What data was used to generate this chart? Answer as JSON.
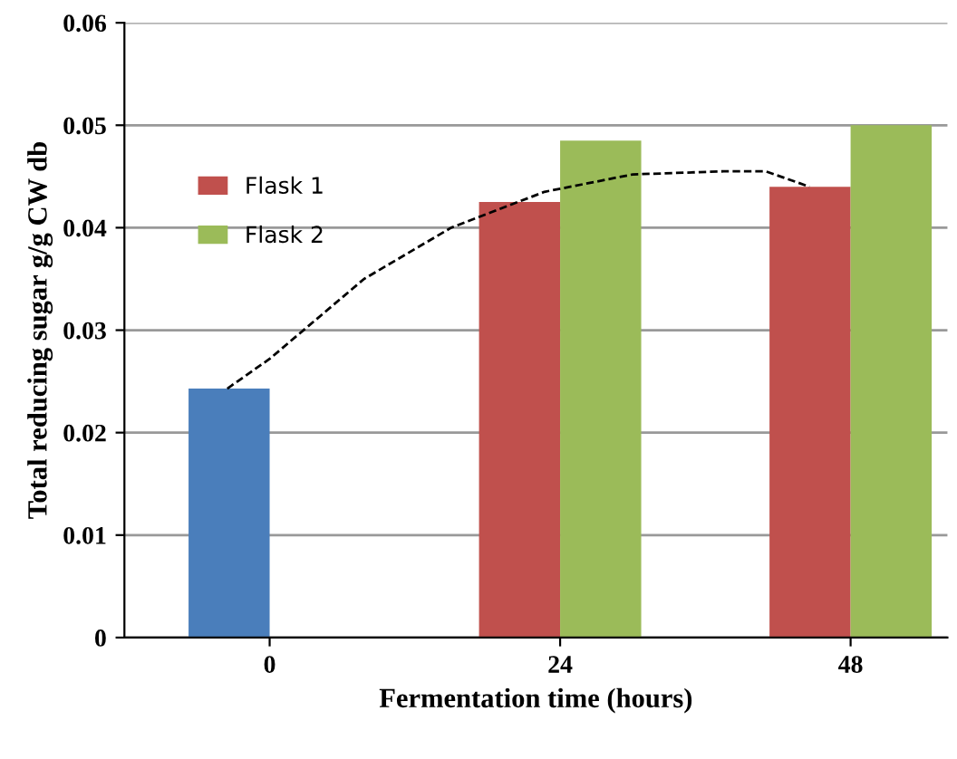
{
  "chart_data": {
    "type": "bar",
    "xlabel": "Fermentation time (hours)",
    "ylabel": "Total reducing sugar g/g CW db",
    "x": [
      0,
      24,
      48
    ],
    "xlim": [
      -12,
      56
    ],
    "xticks": [
      0,
      24,
      48
    ],
    "ylim": [
      0,
      0.06
    ],
    "yticks": [
      0,
      0.01,
      0.02,
      0.03,
      0.04,
      0.05,
      0.06
    ],
    "grid": "y",
    "legend": "top left",
    "series": [
      {
        "name": "Flask 1",
        "color": "#c0504d",
        "colors": [
          "#4a7ebb",
          "#c0504d",
          "#c0504d"
        ],
        "values": [
          0.0243,
          0.0425,
          0.044
        ]
      },
      {
        "name": "Flask 2",
        "color": "#9bbb59",
        "values": [
          null,
          0.0485,
          0.05
        ]
      },
      {
        "type": "line",
        "color": "#000000",
        "line_style": "dashed",
        "x": [
          -3.5,
          0,
          7.8,
          15,
          22.7,
          30,
          37.5,
          41,
          44.6
        ],
        "values": [
          0.0243,
          0.0272,
          0.035,
          0.04,
          0.0435,
          0.0452,
          0.0455,
          0.0455,
          0.044
        ]
      }
    ]
  }
}
